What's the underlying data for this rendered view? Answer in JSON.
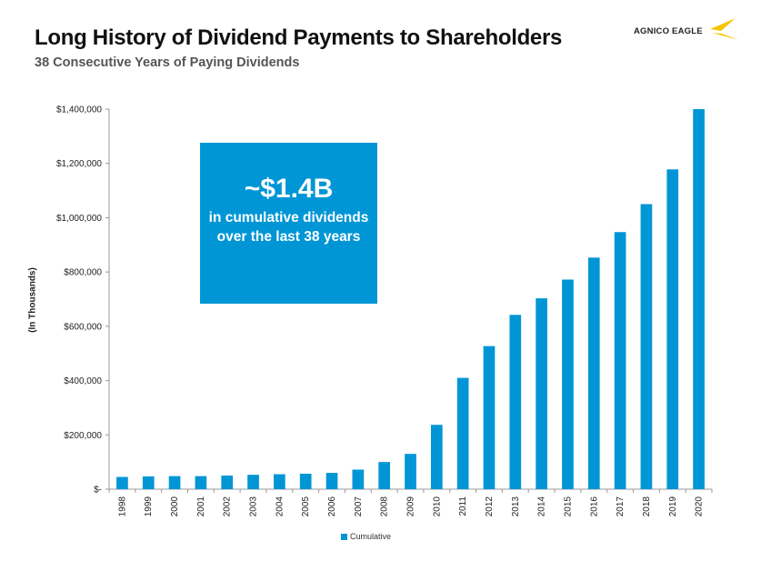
{
  "title": "Long History of Dividend Payments to Shareholders",
  "subtitle": "38 Consecutive Years of Paying Dividends",
  "logo": {
    "text": "AGNICO EAGLE",
    "icon": "eagle-icon",
    "color": "#f5c400"
  },
  "callout": {
    "headline": "~$1.4B",
    "text": "in cumulative dividends over the last 38 years"
  },
  "chart_data": {
    "type": "bar",
    "ylabel": "(In Thousands)",
    "ylim": [
      0,
      1400000
    ],
    "yticks": [
      0,
      200000,
      400000,
      600000,
      800000,
      1000000,
      1200000,
      1400000
    ],
    "ytick_labels": [
      "$-",
      "$200,000",
      "$400,000",
      "$600,000",
      "$800,000",
      "$1,000,000",
      "$1,200,000",
      "$1,400,000"
    ],
    "categories": [
      "1998",
      "1999",
      "2000",
      "2001",
      "2002",
      "2003",
      "2004",
      "2005",
      "2006",
      "2007",
      "2008",
      "2009",
      "2010",
      "2011",
      "2012",
      "2013",
      "2014",
      "2015",
      "2016",
      "2017",
      "2018",
      "2019",
      "2020"
    ],
    "series": [
      {
        "name": "Cumulative",
        "color": "#0096d6",
        "values": [
          45000,
          47000,
          48000,
          48000,
          50000,
          53000,
          55000,
          57000,
          60000,
          72000,
          100000,
          130000,
          237000,
          410000,
          527000,
          642000,
          703000,
          772000,
          853000,
          947000,
          1050000,
          1178000,
          1400000
        ]
      }
    ],
    "legend": "bottom-center",
    "grid": false
  }
}
